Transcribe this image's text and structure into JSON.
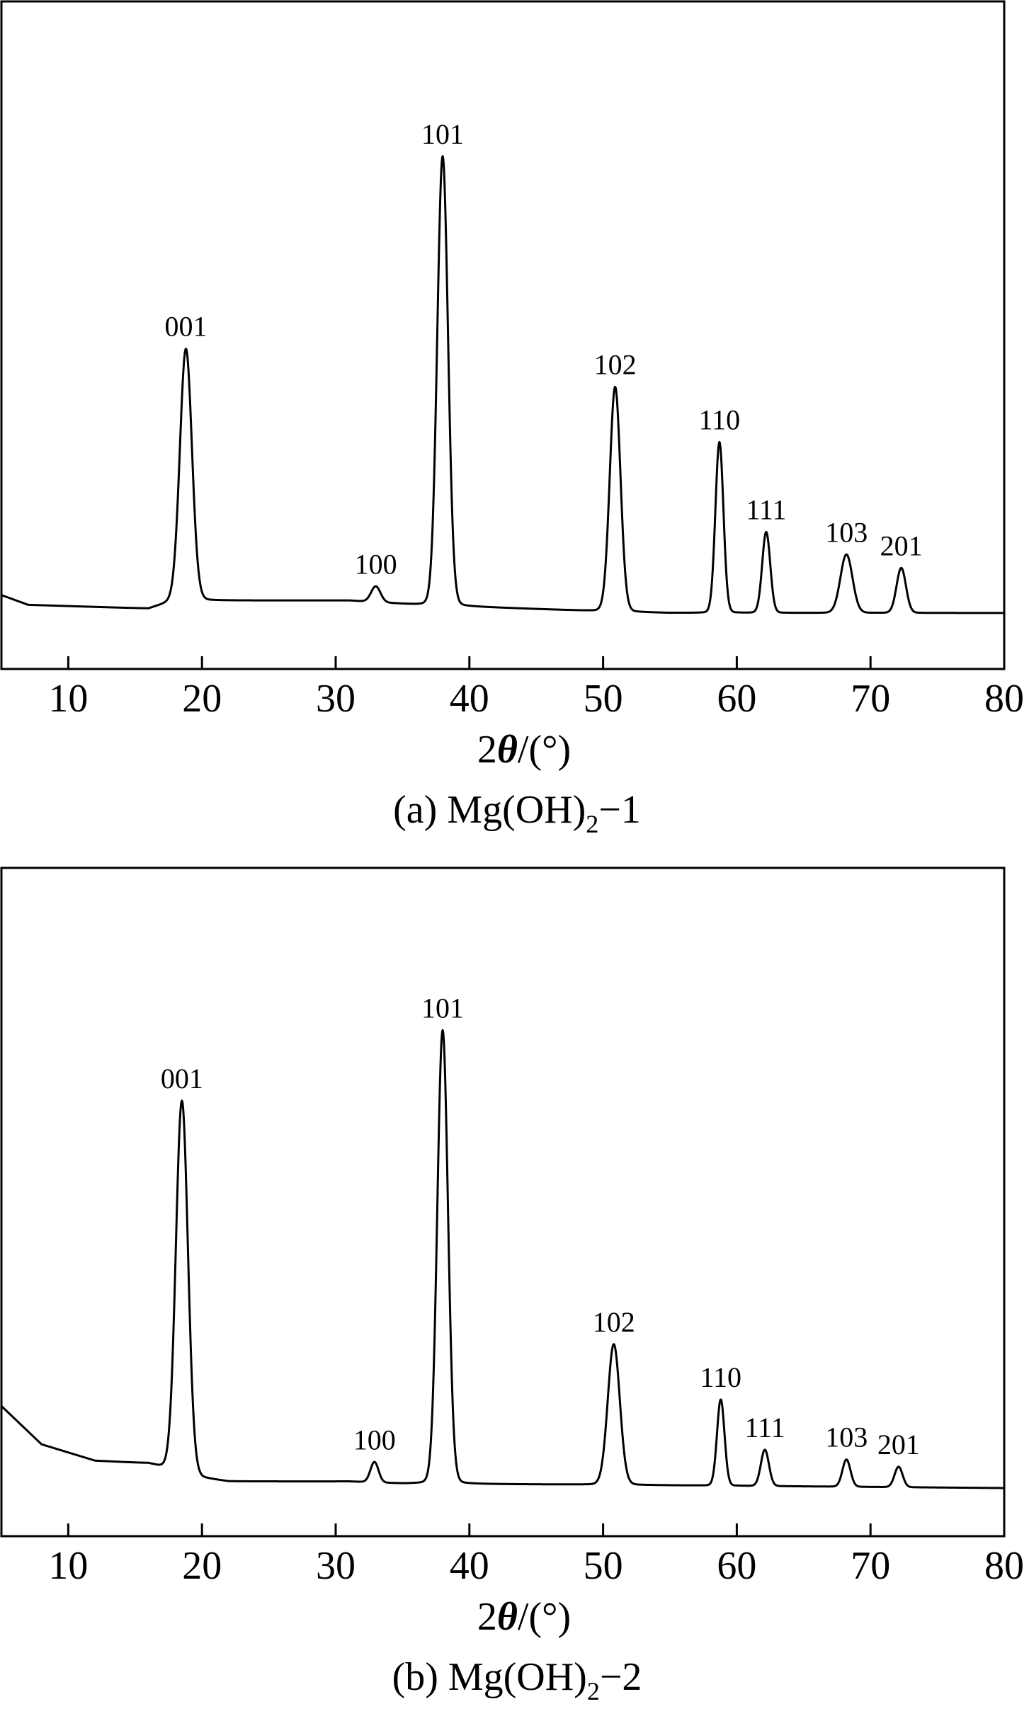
{
  "chart_data": [
    {
      "type": "line",
      "panel": "a",
      "caption_prefix": "(a) Mg(OH)",
      "caption_sub": "2",
      "caption_suffix": "−1",
      "xlabel_prefix": "2",
      "xlabel_theta": "θ",
      "xlabel_suffix": "/(°)",
      "ylabel": "",
      "xlim": [
        5,
        80
      ],
      "ylim": [
        0,
        100
      ],
      "xticks": [
        10,
        20,
        30,
        40,
        50,
        60,
        70,
        80
      ],
      "grid": false,
      "baseline": [
        [
          5,
          5.8
        ],
        [
          7,
          4.0
        ],
        [
          16,
          3.3
        ],
        [
          18,
          4.8
        ],
        [
          31,
          4.8
        ],
        [
          36,
          4.0
        ],
        [
          50,
          2.8
        ],
        [
          55,
          2.5
        ],
        [
          80,
          2.5
        ]
      ],
      "peaks": [
        {
          "label": "001",
          "pos": 18.8,
          "height": 56.0,
          "width": 0.45
        },
        {
          "label": "100",
          "pos": 33.0,
          "height": 3.5,
          "width": 0.35
        },
        {
          "label": "101",
          "pos": 38.0,
          "height": 100.0,
          "width": 0.4
        },
        {
          "label": "102",
          "pos": 50.9,
          "height": 50.0,
          "width": 0.4
        },
        {
          "label": "110",
          "pos": 58.7,
          "height": 38.0,
          "width": 0.3
        },
        {
          "label": "111",
          "pos": 62.2,
          "height": 18.0,
          "width": 0.3
        },
        {
          "label": "103",
          "pos": 68.2,
          "height": 13.0,
          "width": 0.45
        },
        {
          "label": "201",
          "pos": 72.3,
          "height": 10.0,
          "width": 0.35
        }
      ]
    },
    {
      "type": "line",
      "panel": "b",
      "caption_prefix": "(b) Mg(OH)",
      "caption_sub": "2",
      "caption_suffix": "−2",
      "xlabel_prefix": "2",
      "xlabel_theta": "θ",
      "xlabel_suffix": "/(°)",
      "ylabel": "",
      "xlim": [
        5,
        80
      ],
      "ylim": [
        0,
        100
      ],
      "xticks": [
        10,
        20,
        30,
        40,
        50,
        60,
        70,
        80
      ],
      "grid": false,
      "baseline": [
        [
          5,
          15.0
        ],
        [
          8,
          8.0
        ],
        [
          12,
          5.0
        ],
        [
          16,
          4.5
        ],
        [
          20,
          1.8
        ],
        [
          22,
          1.2
        ],
        [
          31,
          1.2
        ],
        [
          35,
          0.8
        ],
        [
          50,
          0.6
        ],
        [
          80,
          0.0
        ]
      ],
      "peaks": [
        {
          "label": "001",
          "pos": 18.5,
          "height": 82.0,
          "width": 0.45
        },
        {
          "label": "100",
          "pos": 32.9,
          "height": 4.5,
          "width": 0.3
        },
        {
          "label": "101",
          "pos": 38.0,
          "height": 100.0,
          "width": 0.4
        },
        {
          "label": "102",
          "pos": 50.8,
          "height": 31.0,
          "width": 0.45
        },
        {
          "label": "110",
          "pos": 58.8,
          "height": 19.0,
          "width": 0.28
        },
        {
          "label": "111",
          "pos": 62.1,
          "height": 8.0,
          "width": 0.3
        },
        {
          "label": "103",
          "pos": 68.2,
          "height": 6.0,
          "width": 0.3
        },
        {
          "label": "201",
          "pos": 72.1,
          "height": 4.5,
          "width": 0.3
        }
      ]
    }
  ]
}
